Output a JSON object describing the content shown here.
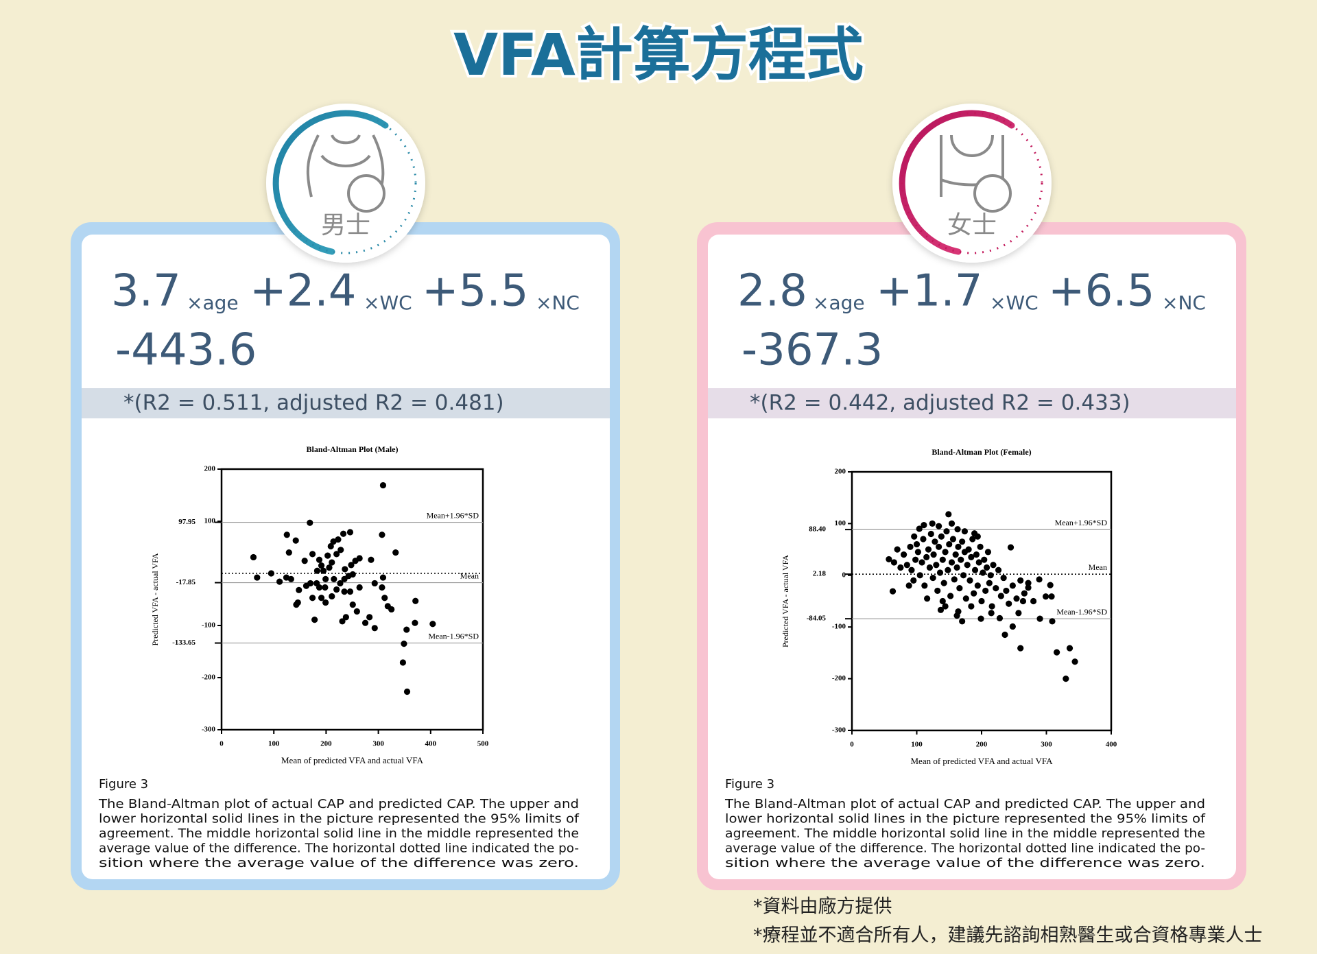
{
  "title": "VFA計算方程式",
  "cards": [
    {
      "label": "男士",
      "formula": {
        "terms": [
          {
            "coef": "3.7",
            "var": "×age"
          },
          {
            "coef": "+2.4",
            "var": "×WC"
          },
          {
            "coef": "+5.5",
            "var": "×NC"
          }
        ],
        "constant": "-443.6"
      },
      "stats": "*(R2 = 0.511, adjusted R2 = 0.481)",
      "figure_label": "Figure 3",
      "caption_lines": [
        "The Bland-Altman plot of actual CAP and predicted CAP. The upper and",
        "lower horizontal solid lines in the picture represented the 95% limits of",
        "agreement. The middle horizontal solid line in the middle represented the",
        "average value of the difference. The horizontal dotted line indicated the po-",
        "sition where the average value of the difference was zero."
      ]
    },
    {
      "label": "女士",
      "formula": {
        "terms": [
          {
            "coef": "2.8",
            "var": "×age"
          },
          {
            "coef": "+1.7",
            "var": "×WC"
          },
          {
            "coef": "+6.5",
            "var": "×NC"
          }
        ],
        "constant": "-367.3"
      },
      "stats": "*(R2 = 0.442, adjusted R2 = 0.433)",
      "figure_label": "Figure 3",
      "caption_lines": [
        "The Bland-Altman plot of actual CAP and predicted CAP. The upper and",
        "lower horizontal solid lines in the picture represented the 95% limits of",
        "agreement. The middle horizontal solid line in the middle represented the",
        "average value of the difference. The horizontal dotted line indicated the po-",
        "sition where the average value of the difference was zero."
      ]
    }
  ],
  "chart_data": [
    {
      "type": "scatter",
      "title": "Bland-Altman Plot (Male)",
      "x_label": "Mean of predicted VFA and actual VFA",
      "y_label": "Predicted VFA - actual VFA",
      "xlim": [
        0,
        500
      ],
      "ylim": [
        -300,
        200
      ],
      "xticks": [
        0,
        100,
        200,
        300,
        400,
        500
      ],
      "yticks": [
        -300,
        -200,
        -100,
        100,
        200
      ],
      "zero_line": "dotted",
      "color": "#000000",
      "ref_lines": [
        {
          "value": 97.95,
          "label": "97.95",
          "name": "Mean+1.96*SD",
          "style": "solid"
        },
        {
          "value": -17.85,
          "label": "-17.85",
          "name": "Mean",
          "style": "solid"
        },
        {
          "value": -133.65,
          "label": "-133.65",
          "name": "Mean-1.96*SD",
          "style": "solid"
        }
      ],
      "x": [
        309,
        169,
        125,
        142,
        61,
        129,
        68,
        95,
        111,
        124,
        133,
        148,
        146,
        143,
        178,
        159,
        174,
        187,
        191,
        183,
        195,
        209,
        214,
        223,
        233,
        246,
        220,
        228,
        211,
        203,
        199,
        215,
        227,
        235,
        243,
        251,
        248,
        256,
        236,
        198,
        182,
        170,
        174,
        191,
        199,
        211,
        220,
        235,
        238,
        231,
        251,
        259,
        264,
        286,
        293,
        275,
        283,
        293,
        309,
        307,
        312,
        318,
        307,
        333,
        325,
        371,
        370,
        354,
        404,
        349,
        347,
        355,
        246,
        264,
        187,
        162,
        206
      ],
      "values": [
        169,
        97,
        74,
        63,
        31,
        40,
        -8,
        0,
        -16,
        -8,
        -11,
        -32,
        -56,
        -60,
        -89,
        24,
        37,
        26,
        15,
        5,
        5,
        52,
        61,
        65,
        76,
        79,
        37,
        45,
        21,
        34,
        -11,
        -11,
        -19,
        -11,
        -5,
        -2,
        16,
        24,
        8,
        -27,
        -19,
        -19,
        -47,
        -47,
        -56,
        -44,
        -31,
        -35,
        -84,
        -92,
        -60,
        -73,
        29,
        26,
        -19,
        -95,
        -84,
        -105,
        -8,
        -27,
        -47,
        -63,
        74,
        40,
        -69,
        -53,
        -95,
        -108,
        -97,
        -135,
        -171,
        -227,
        -35,
        -27,
        -27,
        -24,
        11
      ]
    },
    {
      "type": "scatter",
      "title": "Bland-Altman Plot (Female)",
      "x_label": "Mean of predicted VFA and actual VFA",
      "y_label": "Predicted VFA - actual VFA",
      "xlim": [
        0,
        400
      ],
      "ylim": [
        -300,
        200
      ],
      "xticks": [
        0,
        100,
        200,
        300,
        400
      ],
      "yticks": [
        -300,
        -200,
        -100,
        0,
        100,
        200
      ],
      "color": "#000000",
      "ref_lines": [
        {
          "value": 88.4,
          "label": "88.40",
          "name": "Mean+1.96*SD",
          "style": "solid"
        },
        {
          "value": 2.18,
          "label": "2.18",
          "name": "Mean",
          "style": "dotted"
        },
        {
          "value": -84.05,
          "label": "-84.05",
          "name": "Mean-1.96*SD",
          "style": "solid"
        }
      ],
      "x": [
        149,
        316,
        336,
        344,
        330,
        260,
        236,
        248,
        290,
        309,
        308,
        299,
        289,
        306,
        63,
        57,
        111,
        163,
        189,
        245,
        272,
        264,
        257,
        228,
        215,
        199,
        170,
        162,
        137,
        140,
        80,
        85,
        90,
        92,
        95,
        98,
        100,
        102,
        105,
        108,
        110,
        112,
        115,
        118,
        120,
        122,
        125,
        126,
        128,
        130,
        132,
        134,
        136,
        138,
        140,
        142,
        144,
        146,
        148,
        150,
        152,
        154,
        156,
        158,
        160,
        162,
        164,
        166,
        168,
        170,
        172,
        174,
        176,
        178,
        180,
        182,
        184,
        186,
        188,
        190,
        192,
        194,
        196,
        198,
        200,
        202,
        204,
        206,
        208,
        210,
        212,
        214,
        216,
        218,
        222,
        226,
        230,
        234,
        238,
        242,
        248,
        254,
        260,
        266,
        272,
        280,
        88,
        96,
        104,
        116,
        124,
        134,
        144,
        154,
        164,
        174,
        184,
        194,
        70,
        75,
        65
      ],
      "values": [
        118,
        -149,
        -141,
        -167,
        -200,
        -141,
        -115,
        -99,
        -84,
        -89,
        -41,
        -41,
        -8,
        -19,
        -31,
        31,
        97,
        89,
        81,
        54,
        -24,
        -50,
        -73,
        -83,
        -73,
        -84,
        -89,
        -78,
        -67,
        -50,
        40,
        20,
        55,
        10,
        -10,
        30,
        60,
        45,
        0,
        25,
        70,
        -20,
        35,
        50,
        15,
        80,
        -5,
        40,
        65,
        20,
        -30,
        55,
        5,
        75,
        30,
        -15,
        45,
        85,
        10,
        60,
        -40,
        25,
        70,
        -8,
        40,
        15,
        55,
        -25,
        30,
        65,
        0,
        45,
        -45,
        20,
        50,
        -10,
        35,
        70,
        -35,
        10,
        40,
        -20,
        25,
        55,
        -50,
        5,
        30,
        -30,
        15,
        45,
        -15,
        0,
        -60,
        20,
        -25,
        10,
        -40,
        -5,
        -30,
        -55,
        -20,
        -45,
        -10,
        -35,
        -15,
        -50,
        -20,
        75,
        90,
        -45,
        100,
        95,
        -60,
        100,
        -70,
        85,
        -60,
        75,
        50,
        15,
        25
      ]
    }
  ],
  "footnotes": [
    "*資料由廠方提供",
    "*療程並不適合所有人，建議先諮詢相熟醫生或合資格專業人士"
  ]
}
